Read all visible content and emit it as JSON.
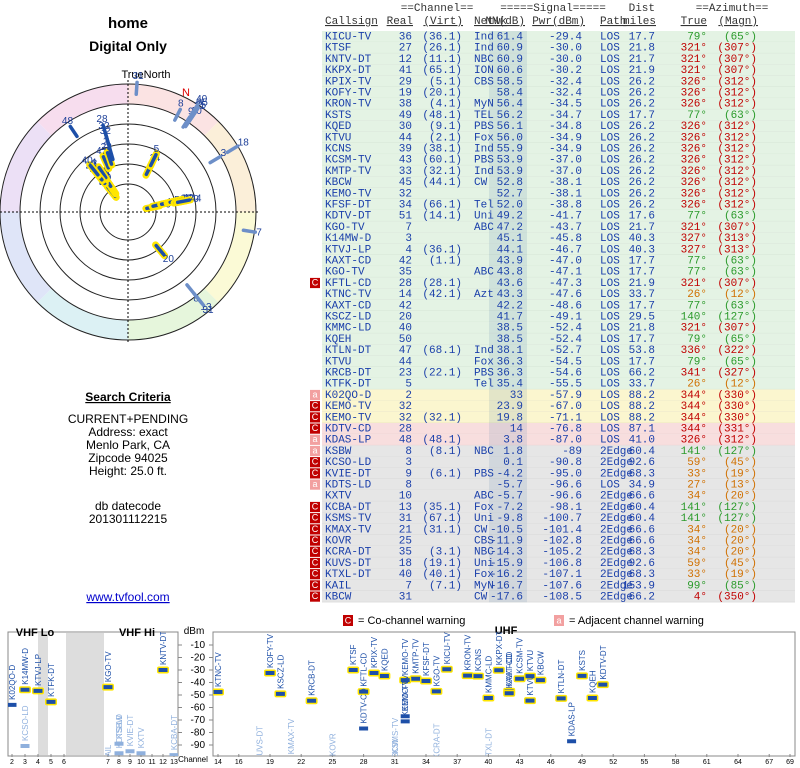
{
  "left": {
    "title": "home",
    "subtitle": "Digital Only",
    "true_north": "TrueNorth",
    "north": "N",
    "criteria_title": "Search Criteria",
    "criteria": [
      "CURRENT+PENDING",
      "Address: exact",
      "Menlo Park, CA",
      "Zipcode 94025",
      "Height: 25.0 ft."
    ],
    "datecode_label": "db datecode",
    "datecode": "201301112215",
    "link": "www.tvfool.com"
  },
  "table": {
    "header": {
      "channel": "==Channel==",
      "signal": "=====Signal=====",
      "dist": "Dist",
      "azimuth": "==Azimuth==",
      "callsign": "Callsign",
      "real": "Real",
      "virt": "(Virt)",
      "netwk": "Netwk",
      "nm": "NM(dB)",
      "pwr": "Pwr(dBm)",
      "path": "Path",
      "miles": "miles",
      "true": "True",
      "magn": "(Magn)"
    },
    "rows": [
      {
        "call": "KICU-TV",
        "ch": 36,
        "virt": "(36.1)",
        "net": "Ind",
        "nm": 61.4,
        "pwr": -29.4,
        "path": "LOS",
        "dist": 17.7,
        "az": {
          "value": 79,
          "label": "79°"
        },
        "mag": {
          "value": 65,
          "label": "(65°)"
        }
      },
      {
        "call": "KTSF",
        "ch": 27,
        "virt": "(26.1)",
        "net": "Ind",
        "nm": 60.9,
        "pwr": {
          "value": -30.0,
          "label": "-30.0"
        },
        "path": "LOS",
        "dist": 21.8,
        "az": {
          "value": 321,
          "label": "321°"
        },
        "mag": {
          "value": 307,
          "label": "(307°)"
        }
      },
      {
        "call": "KNTV-DT",
        "ch": 12,
        "virt": "(11.1)",
        "net": "NBC",
        "nm": 60.9,
        "pwr": {
          "value": -30.0,
          "label": "-30.0"
        },
        "path": "LOS",
        "dist": 21.7,
        "az": {
          "value": 321,
          "label": "321°"
        },
        "mag": {
          "value": 307,
          "label": "(307°)"
        }
      },
      {
        "call": "KKPX-DT",
        "ch": 41,
        "virt": "(65.1)",
        "net": "ION",
        "nm": 60.6,
        "pwr": -30.2,
        "path": "LOS",
        "dist": 21.9,
        "az": {
          "value": 321,
          "label": "321°"
        },
        "mag": {
          "value": 307,
          "label": "(307°)"
        }
      },
      {
        "call": "KPIX-TV",
        "ch": 29,
        "virt": "(5.1)",
        "net": "CBS",
        "nm": 58.5,
        "pwr": -32.4,
        "path": "LOS",
        "dist": 26.2,
        "az": {
          "value": 326,
          "label": "326°"
        },
        "mag": {
          "value": 312,
          "label": "(312°)"
        }
      },
      {
        "call": "KOFY-TV",
        "ch": 19,
        "virt": "(20.1)",
        "nm": 58.4,
        "pwr": -32.4,
        "path": "LOS",
        "dist": 26.2,
        "az": {
          "value": 326,
          "label": "326°"
        },
        "mag": {
          "value": 312,
          "label": "(312°)"
        }
      },
      {
        "call": "KRON-TV",
        "ch": 38,
        "virt": "(4.1)",
        "net": "MyN",
        "nm": 56.4,
        "pwr": -34.5,
        "path": "LOS",
        "dist": 26.2,
        "az": {
          "value": 326,
          "label": "326°"
        },
        "mag": {
          "value": 312,
          "label": "(312°)"
        }
      },
      {
        "call": "KSTS",
        "ch": 49,
        "virt": "(48.1)",
        "net": "TEL",
        "nm": 56.2,
        "pwr": -34.7,
        "path": "LOS",
        "dist": 17.7,
        "az": {
          "value": 77,
          "label": "77°"
        },
        "mag": {
          "value": 63,
          "label": "(63°)"
        }
      },
      {
        "call": "KQED",
        "ch": 30,
        "virt": "(9.1)",
        "net": "PBS",
        "nm": 56.1,
        "pwr": -34.8,
        "path": "LOS",
        "dist": 26.2,
        "az": {
          "value": 326,
          "label": "326°"
        },
        "mag": {
          "value": 312,
          "label": "(312°)"
        }
      },
      {
        "call": "KTVU",
        "ch": 44,
        "virt": "(2.1)",
        "net": "Fox",
        "nm": {
          "value": 56.0,
          "label": "56.0"
        },
        "pwr": -34.9,
        "path": "LOS",
        "dist": 26.2,
        "az": {
          "value": 326,
          "label": "326°"
        },
        "mag": {
          "value": 312,
          "label": "(312°)"
        }
      },
      {
        "call": "KCNS",
        "ch": 39,
        "virt": "(38.1)",
        "net": "Ind",
        "nm": 55.9,
        "pwr": -34.9,
        "path": "LOS",
        "dist": 26.2,
        "az": {
          "value": 326,
          "label": "326°"
        },
        "mag": {
          "value": 312,
          "label": "(312°)"
        }
      },
      {
        "call": "KCSM-TV",
        "ch": 43,
        "virt": "(60.1)",
        "net": "PBS",
        "nm": 53.9,
        "pwr": {
          "value": -37.0,
          "label": "-37.0"
        },
        "path": "LOS",
        "dist": 26.2,
        "az": {
          "value": 326,
          "label": "326°"
        },
        "mag": {
          "value": 312,
          "label": "(312°)"
        }
      },
      {
        "call": "KMTP-TV",
        "ch": 33,
        "virt": "(32.1)",
        "net": "Ind",
        "nm": 53.9,
        "pwr": {
          "value": -37.0,
          "label": "-37.0"
        },
        "path": "LOS",
        "dist": 26.2,
        "az": {
          "value": 326,
          "label": "326°"
        },
        "mag": {
          "value": 312,
          "label": "(312°)"
        }
      },
      {
        "call": "KBCW",
        "ch": 45,
        "virt": "(44.1)",
        "net": "CW",
        "nm": 52.8,
        "pwr": -38.1,
        "path": "LOS",
        "dist": 26.2,
        "az": {
          "value": 326,
          "label": "326°"
        },
        "mag": {
          "value": 312,
          "label": "(312°)"
        }
      },
      {
        "call": "KEMO-TV",
        "ch": 32,
        "nm": 52.7,
        "pwr": -38.1,
        "path": "LOS",
        "dist": 26.2,
        "az": {
          "value": 326,
          "label": "326°"
        },
        "mag": {
          "value": 312,
          "label": "(312°)"
        }
      },
      {
        "call": "KFSF-DT",
        "ch": 34,
        "virt": "(66.1)",
        "net": "Tel",
        "nm": {
          "value": 52.0,
          "label": "52.0"
        },
        "pwr": -38.8,
        "path": "LOS",
        "dist": 26.2,
        "az": {
          "value": 326,
          "label": "326°"
        },
        "mag": {
          "value": 312,
          "label": "(312°)"
        }
      },
      {
        "call": "KDTV-DT",
        "ch": 51,
        "virt": "(14.1)",
        "net": "Uni",
        "nm": 49.2,
        "pwr": -41.7,
        "path": "LOS",
        "dist": 17.6,
        "az": {
          "value": 77,
          "label": "77°"
        },
        "mag": {
          "value": 63,
          "label": "(63°)"
        }
      },
      {
        "call": "KGO-TV",
        "ch": 7,
        "net": "ABC",
        "nm": 47.2,
        "pwr": -43.7,
        "path": "LOS",
        "dist": 21.7,
        "az": {
          "value": 321,
          "label": "321°"
        },
        "mag": {
          "value": 307,
          "label": "(307°)"
        }
      },
      {
        "call": "K14MW-D",
        "ch": 3,
        "nm": 45.1,
        "pwr": -45.8,
        "path": "LOS",
        "dist": 40.3,
        "az": {
          "value": 327,
          "label": "327°"
        },
        "mag": {
          "value": 313,
          "label": "(313°)"
        }
      },
      {
        "call": "KTVJ-LP",
        "ch": 4,
        "virt": "(36.1)",
        "nm": 44.1,
        "pwr": -46.7,
        "path": "LOS",
        "dist": 40.3,
        "az": {
          "value": 327,
          "label": "327°"
        },
        "mag": {
          "value": 313,
          "label": "(313°)"
        }
      },
      {
        "call": "KAXT-CD",
        "ch": 42,
        "virt": "(1.1)",
        "nm": 43.9,
        "pwr": {
          "value": -47.0,
          "label": "-47.0"
        },
        "path": "LOS",
        "dist": 17.7,
        "az": {
          "value": 77,
          "label": "77°"
        },
        "mag": {
          "value": 63,
          "label": "(63°)"
        }
      },
      {
        "call": "KGO-TV",
        "ch": 35,
        "net": "ABC",
        "nm": 43.8,
        "pwr": -47.1,
        "path": "LOS",
        "dist": 17.7,
        "az": {
          "value": 77,
          "label": "77°"
        },
        "mag": {
          "value": 63,
          "label": "(63°)"
        }
      },
      {
        "f": "C",
        "call": "KFTL-CD",
        "ch": 28,
        "virt": "(28.1)",
        "nm": 43.6,
        "pwr": -47.3,
        "path": "LOS",
        "dist": 21.9,
        "az": {
          "value": 321,
          "label": "321°"
        },
        "mag": {
          "value": 307,
          "label": "(307°)"
        }
      },
      {
        "call": "KTNC-TV",
        "ch": 14,
        "virt": "(42.1)",
        "net": "Azt",
        "nm": 43.3,
        "pwr": -47.6,
        "path": "LOS",
        "dist": 33.7,
        "az": {
          "value": 26,
          "label": "26°"
        },
        "mag": {
          "value": 12,
          "label": "(12°)"
        }
      },
      {
        "call": "KAXT-CD",
        "ch": 42,
        "nm": 42.2,
        "pwr": -48.6,
        "path": "LOS",
        "dist": 17.7,
        "az": {
          "value": 77,
          "label": "77°"
        },
        "mag": {
          "value": 63,
          "label": "(63°)"
        }
      },
      {
        "call": "KSCZ-LD",
        "ch": 20,
        "nm": 41.7,
        "pwr": -49.1,
        "path": "LOS",
        "dist": 29.5,
        "az": {
          "value": 140,
          "label": "140°"
        },
        "mag": {
          "value": 127,
          "label": "(127°)"
        }
      },
      {
        "call": "KMMC-LD",
        "ch": 40,
        "nm": 38.5,
        "pwr": -52.4,
        "path": "LOS",
        "dist": 21.8,
        "az": {
          "value": 321,
          "label": "321°"
        },
        "mag": {
          "value": 307,
          "label": "(307°)"
        }
      },
      {
        "call": "KQEH",
        "ch": 50,
        "nm": 38.5,
        "pwr": -52.4,
        "path": "LOS",
        "dist": 17.7,
        "az": {
          "value": 79,
          "label": "79°"
        },
        "mag": {
          "value": 65,
          "label": "(65°)"
        }
      },
      {
        "call": "KTLN-DT",
        "ch": 47,
        "virt": "(68.1)",
        "net": "Ind",
        "nm": 38.1,
        "pwr": -52.7,
        "path": "LOS",
        "dist": 53.8,
        "az": {
          "value": 336,
          "label": "336°"
        },
        "mag": {
          "value": 322,
          "label": "(322°)"
        }
      },
      {
        "call": "KTVU",
        "ch": 44,
        "net": "Fox",
        "nm": 36.3,
        "pwr": -54.5,
        "path": "LOS",
        "dist": 17.7,
        "az": {
          "value": 79,
          "label": "79°"
        },
        "mag": {
          "value": 65,
          "label": "(65°)"
        }
      },
      {
        "call": "KRCB-DT",
        "ch": 23,
        "virt": "(22.1)",
        "net": "PBS",
        "nm": 36.3,
        "pwr": -54.6,
        "path": "LOS",
        "dist": 66.2,
        "az": {
          "value": 341,
          "label": "341°"
        },
        "mag": {
          "value": 327,
          "label": "(327°)"
        }
      },
      {
        "call": "KTFK-DT",
        "ch": 5,
        "net": "Tel",
        "nm": 35.4,
        "pwr": -55.5,
        "path": "LOS",
        "dist": 33.7,
        "az": {
          "value": 26,
          "label": "26°"
        },
        "mag": {
          "value": 12,
          "label": "(12°)"
        }
      },
      {
        "f": "a",
        "call": "K02QO-D",
        "ch": 2,
        "nm": 33.0,
        "pwr": -57.9,
        "path": "LOS",
        "dist": 88.2,
        "az": {
          "value": 344,
          "label": "344°"
        },
        "mag": {
          "value": 330,
          "label": "(330°)"
        }
      },
      {
        "f": "C",
        "call": "KEMO-TV",
        "ch": 32,
        "nm": 23.9,
        "pwr": {
          "value": -67.0,
          "label": "-67.0"
        },
        "path": "LOS",
        "dist": 88.2,
        "az": {
          "value": 344,
          "label": "344°"
        },
        "mag": {
          "value": 330,
          "label": "(330°)"
        }
      },
      {
        "f": "C",
        "call": "KEMO-TV",
        "ch": 32,
        "virt": "(32.1)",
        "nm": 19.8,
        "pwr": -71.1,
        "path": "LOS",
        "dist": 88.2,
        "az": {
          "value": 344,
          "label": "344°"
        },
        "mag": {
          "value": 330,
          "label": "(330°)"
        }
      },
      {
        "f": "C",
        "call": "KDTV-CD",
        "ch": 28,
        "nm": 14,
        "pwr": -76.8,
        "path": "LOS",
        "dist": 87.1,
        "az": {
          "value": 344,
          "label": "344°"
        },
        "mag": {
          "value": 331,
          "label": "(331°)"
        }
      },
      {
        "f": "a",
        "call": "KDAS-LP",
        "ch": 48,
        "virt": "(48.1)",
        "nm": 3.8,
        "pwr": {
          "value": -87.0,
          "label": "-87.0"
        },
        "path": "LOS",
        "dist": {
          "value": 41.0,
          "label": "41.0"
        },
        "az": {
          "value": 326,
          "label": "326°"
        },
        "mag": {
          "value": 312,
          "label": "(312°)"
        }
      },
      {
        "f": "a",
        "call": "KSBW",
        "ch": 8,
        "virt": "(8.1)",
        "net": "NBC",
        "nm": 1.8,
        "pwr": -89.0,
        "path": "2Edge",
        "dist": 60.4,
        "az": {
          "value": 141,
          "label": "141°"
        },
        "mag": {
          "value": 127,
          "label": "(127°)"
        }
      },
      {
        "f": "C",
        "call": "KCSO-LD",
        "ch": 3,
        "nm": 0.1,
        "pwr": -90.8,
        "path": "2Edge",
        "dist": 92.6,
        "az": {
          "value": 59,
          "label": "59°"
        },
        "mag": {
          "value": 45,
          "label": "(45°)"
        }
      },
      {
        "f": "C",
        "call": "KVIE-DT",
        "ch": 9,
        "virt": "(6.1)",
        "net": "PBS",
        "nm": -4.2,
        "pwr": {
          "value": -95.0,
          "label": "-95.0"
        },
        "path": "2Edge",
        "dist": 68.3,
        "az": {
          "value": 33,
          "label": "33°"
        },
        "mag": {
          "value": 19,
          "label": "(19°)"
        }
      },
      {
        "f": "a",
        "call": "KDTS-LD",
        "ch": 8,
        "nm": -5.7,
        "pwr": -96.6,
        "path": "LOS",
        "dist": 34.9,
        "az": {
          "value": 27,
          "label": "27°"
        },
        "mag": {
          "value": 13,
          "label": "(13°)"
        }
      },
      {
        "call": "KXTV",
        "ch": 10,
        "net": "ABC",
        "nm": -5.7,
        "pwr": -96.6,
        "path": "2Edge",
        "dist": 66.6,
        "az": {
          "value": 34,
          "label": "34°"
        },
        "mag": {
          "value": 20,
          "label": "(20°)"
        }
      },
      {
        "f": "C",
        "call": "KCBA-DT",
        "ch": 13,
        "virt": "(35.1)",
        "net": "Fox",
        "nm": -7.2,
        "pwr": -98.1,
        "path": "2Edge",
        "dist": 60.4,
        "az": {
          "value": 141,
          "label": "141°"
        },
        "mag": {
          "value": 127,
          "label": "(127°)"
        }
      },
      {
        "f": "C",
        "call": "KSMS-TV",
        "ch": 31,
        "virt": "(67.1)",
        "net": "Uni",
        "nm": -9.8,
        "pwr": -100.7,
        "path": "2Edge",
        "dist": 60.4,
        "az": {
          "value": 141,
          "label": "141°"
        },
        "mag": {
          "value": 127,
          "label": "(127°)"
        }
      },
      {
        "f": "C",
        "call": "KMAX-TV",
        "ch": 21,
        "virt": "(31.1)",
        "net": "CW",
        "nm": -10.5,
        "pwr": -101.4,
        "path": "2Edge",
        "dist": 66.6,
        "az": {
          "value": 34,
          "label": "34°"
        },
        "mag": {
          "value": 20,
          "label": "(20°)"
        }
      },
      {
        "f": "C",
        "call": "KOVR",
        "ch": 25,
        "net": "CBS",
        "nm": -11.9,
        "pwr": -102.8,
        "path": "2Edge",
        "dist": 66.6,
        "az": {
          "value": 34,
          "label": "34°"
        },
        "mag": {
          "value": 20,
          "label": "(20°)"
        }
      },
      {
        "f": "C",
        "call": "KCRA-DT",
        "ch": 35,
        "virt": "(3.1)",
        "net": "NBC",
        "nm": -14.3,
        "pwr": -105.2,
        "path": "2Edge",
        "dist": 68.3,
        "az": {
          "value": 34,
          "label": "34°"
        },
        "mag": {
          "value": 20,
          "label": "(20°)"
        }
      },
      {
        "f": "C",
        "call": "KUVS-DT",
        "ch": 18,
        "virt": "(19.1)",
        "net": "Uni",
        "nm": -15.9,
        "pwr": -106.8,
        "path": "2Edge",
        "dist": 92.6,
        "az": {
          "value": 59,
          "label": "59°"
        },
        "mag": {
          "value": 45,
          "label": "(45°)"
        }
      },
      {
        "f": "C",
        "call": "KTXL-DT",
        "ch": 40,
        "virt": "(40.1)",
        "net": "Fox",
        "nm": -16.2,
        "pwr": -107.1,
        "path": "2Edge",
        "dist": 68.3,
        "az": {
          "value": 33,
          "label": "33°"
        },
        "mag": {
          "value": 19,
          "label": "(19°)"
        }
      },
      {
        "f": "C",
        "call": "KAIL",
        "ch": 7,
        "virt": "(7.1)",
        "net": "MyN",
        "nm": -16.7,
        "pwr": -107.6,
        "path": "2Edge",
        "dist": 153.9,
        "az": {
          "value": 99,
          "label": "99°"
        },
        "mag": {
          "value": 85,
          "label": "(85°)"
        }
      },
      {
        "f": "C",
        "call": "KBCW",
        "ch": 31,
        "net": "CW",
        "nm": -17.6,
        "pwr": -108.5,
        "path": "2Edge",
        "dist": 66.2,
        "az": {
          "value": 4,
          "label": "4°"
        },
        "mag": {
          "value": 350,
          "label": "(350°)"
        }
      }
    ]
  },
  "legend": {
    "co_flag": "C",
    "co": "= Co-channel warning",
    "adj_flag": "a",
    "adj": "= Adjacent channel warning"
  },
  "spectrum": {
    "unit": "dBm",
    "vhf_lo": "VHF Lo",
    "vhf_hi": "VHF Hi",
    "uhf": "UHF",
    "channel": "Channel",
    "ylim": [
      -4,
      -98
    ],
    "yticks": [
      -10,
      -20,
      -30,
      -40,
      -50,
      -60,
      -70,
      -80,
      -90
    ],
    "xticks": [
      2,
      3,
      4,
      5,
      6,
      7,
      8,
      9,
      10,
      11,
      12,
      13,
      14,
      16,
      19,
      22,
      25,
      28,
      31,
      34,
      37,
      40,
      43,
      46,
      49,
      52,
      55,
      58,
      61,
      64,
      67,
      69
    ]
  }
}
